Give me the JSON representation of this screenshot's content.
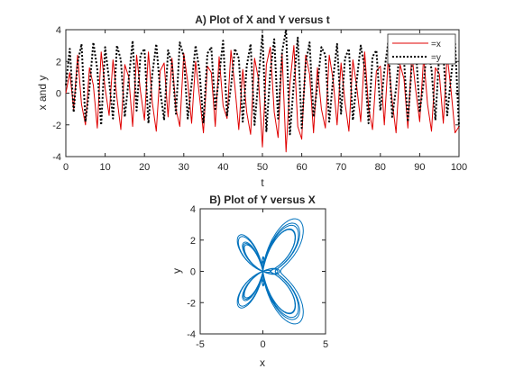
{
  "chart_data": [
    {
      "type": "line",
      "title": "A) Plot of X and Y versus t",
      "xlabel": "t",
      "ylabel": "x and y",
      "xlim": [
        0,
        100
      ],
      "ylim": [
        -4,
        4
      ],
      "xticks": [
        "0",
        "10",
        "20",
        "30",
        "40",
        "50",
        "60",
        "70",
        "80",
        "90",
        "100"
      ],
      "yticks": [
        "-4",
        "-2",
        "0",
        "2",
        "4"
      ],
      "grid": false,
      "legend": "top-right",
      "series": [
        {
          "name": "=x",
          "color": "#e00000",
          "style": "solid",
          "x": [
            0,
            1,
            2,
            3,
            4,
            5,
            6,
            7,
            8,
            9,
            10,
            11,
            12,
            13,
            14,
            15,
            16,
            17,
            18,
            19,
            20,
            21,
            22,
            23,
            24,
            25,
            26,
            27,
            28,
            29,
            30,
            31,
            32,
            33,
            34,
            35,
            36,
            37,
            38,
            39,
            40,
            41,
            42,
            43,
            44,
            45,
            46,
            47,
            48,
            49,
            50,
            51,
            52,
            53,
            54,
            55,
            56,
            57,
            58,
            59,
            60,
            61,
            62,
            63,
            64,
            65,
            66,
            67,
            68,
            69,
            70,
            71,
            72,
            73,
            74,
            75,
            76,
            77,
            78,
            79,
            80,
            81,
            82,
            83,
            84,
            85,
            86,
            87,
            88,
            89,
            90,
            91,
            92,
            93,
            94,
            95,
            96,
            97,
            98,
            99,
            100
          ],
          "values": [
            0.0,
            1.3,
            -1.0,
            2.4,
            -0.7,
            -2.0,
            1.6,
            0.5,
            -2.2,
            2.6,
            0.3,
            -1.4,
            2.1,
            -0.3,
            -2.3,
            1.8,
            1.0,
            -2.1,
            2.4,
            0.1,
            -1.7,
            2.6,
            -0.6,
            -2.4,
            1.4,
            1.9,
            -1.5,
            2.2,
            -1.0,
            -2.1,
            2.5,
            0.7,
            -1.9,
            2.0,
            -0.2,
            -2.5,
            1.7,
            1.3,
            -2.1,
            2.3,
            -0.8,
            -1.6,
            2.7,
            0.4,
            -2.3,
            1.5,
            -1.2,
            -2.6,
            2.2,
            0.9,
            -3.4,
            1.8,
            2.9,
            -1.2,
            -2.8,
            2.5,
            -3.7,
            0.6,
            3.0,
            -2.1,
            -2.9,
            2.4,
            1.2,
            -2.5,
            1.6,
            -1.0,
            -2.2,
            2.4,
            0.8,
            -2.0,
            1.9,
            -0.6,
            -2.4,
            2.1,
            0.4,
            -1.8,
            2.6,
            -0.9,
            -2.3,
            1.4,
            1.7,
            -2.0,
            2.2,
            -0.5,
            -2.5,
            1.8,
            0.9,
            -2.2,
            2.5,
            0.2,
            -1.8,
            2.3,
            -0.7,
            -2.4,
            1.6,
            1.2,
            -1.9,
            2.4,
            0.1,
            -2.5,
            -2.1
          ]
        },
        {
          "name": "=y",
          "color": "#000000",
          "style": "dotted",
          "x": [
            0,
            1,
            2,
            3,
            4,
            5,
            6,
            7,
            8,
            9,
            10,
            11,
            12,
            13,
            14,
            15,
            16,
            17,
            18,
            19,
            20,
            21,
            22,
            23,
            24,
            25,
            26,
            27,
            28,
            29,
            30,
            31,
            32,
            33,
            34,
            35,
            36,
            37,
            38,
            39,
            40,
            41,
            42,
            43,
            44,
            45,
            46,
            47,
            48,
            49,
            50,
            51,
            52,
            53,
            54,
            55,
            56,
            57,
            58,
            59,
            60,
            61,
            62,
            63,
            64,
            65,
            66,
            67,
            68,
            69,
            70,
            71,
            72,
            73,
            74,
            75,
            76,
            77,
            78,
            79,
            80,
            81,
            82,
            83,
            84,
            85,
            86,
            87,
            88,
            89,
            90,
            91,
            92,
            93,
            94,
            95,
            96,
            97,
            98,
            99,
            100
          ],
          "values": [
            0.5,
            2.8,
            -1.2,
            1.9,
            3.1,
            -1.8,
            0.3,
            3.2,
            1.5,
            -2.0,
            2.9,
            0.8,
            -1.6,
            3.0,
            2.1,
            -1.5,
            0.9,
            3.3,
            -1.1,
            2.4,
            2.8,
            -1.9,
            1.2,
            3.1,
            0.2,
            -1.7,
            2.7,
            1.8,
            -1.3,
            3.2,
            2.3,
            -1.6,
            0.6,
            3.0,
            1.4,
            -1.9,
            2.5,
            2.9,
            -1.0,
            1.1,
            3.3,
            -1.4,
            0.4,
            2.8,
            2.2,
            -1.8,
            1.7,
            3.1,
            -2.0,
            0.9,
            3.7,
            -2.4,
            1.3,
            3.4,
            -1.6,
            2.6,
            4.0,
            -2.6,
            0.7,
            3.5,
            -2.2,
            1.9,
            3.2,
            -1.5,
            0.5,
            2.9,
            2.4,
            -1.8,
            1.0,
            3.1,
            -1.3,
            2.2,
            2.8,
            -1.7,
            0.8,
            3.0,
            1.6,
            -1.9,
            2.3,
            2.7,
            -1.1,
            1.4,
            3.2,
            -1.5,
            0.3,
            2.9,
            2.1,
            -1.8,
            1.8,
            3.0,
            -1.2,
            0.7,
            3.1,
            1.5,
            -1.7,
            2.6,
            2.5,
            -1.4,
            1.1,
            3.2,
            -2.1
          ]
        }
      ]
    },
    {
      "type": "line",
      "title": "B) Plot of Y versus X",
      "xlabel": "x",
      "ylabel": "y",
      "xlim": [
        -5,
        5
      ],
      "ylim": [
        -4,
        4
      ],
      "xticks": [
        "-5",
        "0",
        "5"
      ],
      "yticks": [
        "-4",
        "-2",
        "0",
        "2",
        "4"
      ],
      "grid": false,
      "series": [
        {
          "color": "#0072bd",
          "style": "solid",
          "shape": "butterfly curve, |x| up to about 3.7, y spanning about -3.9 to 4"
        }
      ]
    }
  ]
}
